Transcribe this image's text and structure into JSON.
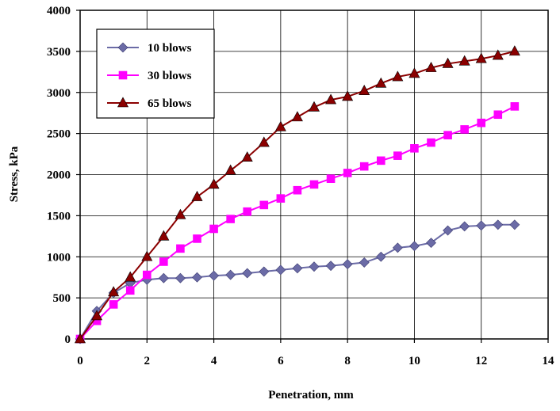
{
  "chart_data": {
    "type": "line",
    "xlabel": "Penetration, mm",
    "ylabel": "Stress, kPa",
    "xlim": [
      0,
      14
    ],
    "ylim": [
      0,
      4000
    ],
    "x_ticks": [
      0,
      2,
      4,
      6,
      8,
      10,
      12,
      14
    ],
    "y_ticks": [
      0,
      500,
      1000,
      1500,
      2000,
      2500,
      3000,
      3500,
      4000
    ],
    "grid": true,
    "legend_position": "top-left",
    "series": [
      {
        "name": "10 blows",
        "color": "#6B6BA6",
        "marker": "diamond",
        "x": [
          0,
          0.5,
          1,
          1.5,
          2,
          2.5,
          3,
          3.5,
          4,
          4.5,
          5,
          5.5,
          6,
          6.5,
          7,
          7.5,
          8,
          8.5,
          9,
          9.5,
          10,
          10.5,
          11,
          11.5,
          12,
          12.5,
          13
        ],
        "y": [
          0,
          340,
          560,
          680,
          720,
          740,
          740,
          750,
          770,
          780,
          800,
          820,
          840,
          860,
          880,
          890,
          910,
          930,
          1000,
          1110,
          1130,
          1170,
          1320,
          1370,
          1380,
          1390,
          1390
        ]
      },
      {
        "name": "30 blows",
        "color": "#FF00FF",
        "marker": "square",
        "x": [
          0,
          0.5,
          1,
          1.5,
          2,
          2.5,
          3,
          3.5,
          4,
          4.5,
          5,
          5.5,
          6,
          6.5,
          7,
          7.5,
          8,
          8.5,
          9,
          9.5,
          10,
          10.5,
          11,
          11.5,
          12,
          12.5,
          13
        ],
        "y": [
          0,
          220,
          420,
          590,
          780,
          940,
          1100,
          1220,
          1340,
          1460,
          1550,
          1630,
          1710,
          1810,
          1880,
          1950,
          2020,
          2100,
          2170,
          2230,
          2320,
          2390,
          2480,
          2550,
          2630,
          2730,
          2830
        ]
      },
      {
        "name": "65 blows",
        "color": "#8B0000",
        "marker": "triangle",
        "x": [
          0,
          0.5,
          1,
          1.5,
          2,
          2.5,
          3,
          3.5,
          4,
          4.5,
          5,
          5.5,
          6,
          6.5,
          7,
          7.5,
          8,
          8.5,
          9,
          9.5,
          10,
          10.5,
          11,
          11.5,
          12,
          12.5,
          13
        ],
        "y": [
          0,
          280,
          570,
          750,
          1000,
          1250,
          1510,
          1730,
          1880,
          2050,
          2210,
          2390,
          2580,
          2700,
          2820,
          2910,
          2950,
          3020,
          3110,
          3190,
          3230,
          3300,
          3350,
          3380,
          3410,
          3450,
          3500
        ]
      }
    ]
  }
}
